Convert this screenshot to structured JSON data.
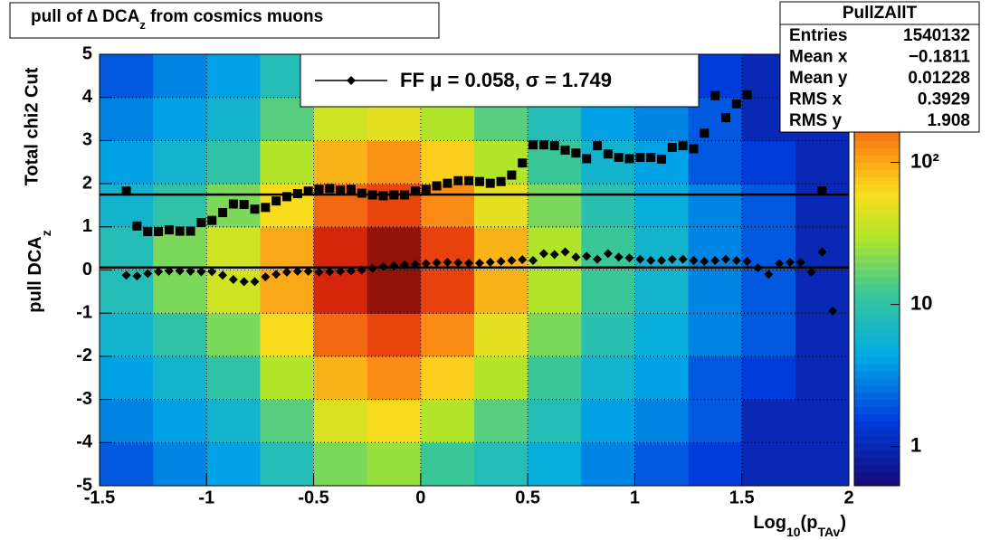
{
  "chart_data": {
    "type": "scatter",
    "title": [
      "pull of ∆ DCA",
      "z",
      " from cosmics muons"
    ],
    "ylabel_top": "Total chi2 Cut",
    "ylabel": [
      "pull DCA",
      "z"
    ],
    "xlabel": [
      "Log",
      "10",
      "(p",
      "TAv",
      ")"
    ],
    "xlim": [
      -1.5,
      2
    ],
    "ylim": [
      -5,
      5
    ],
    "xticks": [
      -1.5,
      -1,
      -0.5,
      0,
      0.5,
      1,
      1.5,
      2
    ],
    "yticks": [
      -5,
      -4,
      -3,
      -2,
      -1,
      0,
      1,
      2,
      3,
      4,
      5
    ],
    "grid": true,
    "legend": "FF μ =  0.058, σ =   1.749",
    "fit_lines": [
      0.058,
      1.749
    ],
    "x": [
      -1.375,
      -1.325,
      -1.275,
      -1.225,
      -1.175,
      -1.125,
      -1.075,
      -1.025,
      -0.975,
      -0.925,
      -0.875,
      -0.825,
      -0.775,
      -0.725,
      -0.675,
      -0.625,
      -0.575,
      -0.525,
      -0.475,
      -0.425,
      -0.375,
      -0.325,
      -0.275,
      -0.225,
      -0.175,
      -0.125,
      -0.075,
      -0.025,
      0.025,
      0.075,
      0.125,
      0.175,
      0.225,
      0.275,
      0.325,
      0.375,
      0.425,
      0.475,
      0.525,
      0.575,
      0.625,
      0.675,
      0.725,
      0.775,
      0.825,
      0.875,
      0.925,
      0.975,
      1.025,
      1.075,
      1.125,
      1.175,
      1.225,
      1.275,
      1.325,
      1.375,
      1.425,
      1.475,
      1.525,
      1.575,
      1.625,
      1.675,
      1.725,
      1.775,
      1.825,
      1.875,
      1.925
    ],
    "series": [
      {
        "marker": "diamond",
        "color": "#000000",
        "values": [
          -0.12,
          -0.14,
          -0.08,
          -0.04,
          -0.02,
          -0.02,
          -0.03,
          -0.04,
          -0.04,
          -0.12,
          -0.22,
          -0.27,
          -0.27,
          -0.16,
          -0.1,
          -0.05,
          -0.03,
          -0.03,
          -0.05,
          -0.04,
          -0.03,
          -0.02,
          0.0,
          0.04,
          0.08,
          0.1,
          0.12,
          0.13,
          0.15,
          0.17,
          0.18,
          0.17,
          0.16,
          0.16,
          0.18,
          0.2,
          0.22,
          0.24,
          0.22,
          0.38,
          0.36,
          0.42,
          0.3,
          0.32,
          0.25,
          0.38,
          0.3,
          0.28,
          0.25,
          0.22,
          0.22,
          0.25,
          0.25,
          0.22,
          0.2,
          0.22,
          0.25,
          0.22,
          0.2,
          0.05,
          -0.1,
          0.15,
          0.18,
          0.18,
          -0.05,
          0.42,
          -0.95
        ]
      },
      {
        "marker": "square",
        "color": "#000000",
        "values": [
          1.83,
          1.02,
          0.89,
          0.89,
          0.93,
          0.9,
          0.9,
          1.1,
          1.15,
          1.33,
          1.53,
          1.52,
          1.41,
          1.45,
          1.6,
          1.7,
          1.77,
          1.83,
          1.87,
          1.89,
          1.85,
          1.87,
          1.78,
          1.74,
          1.72,
          1.74,
          1.74,
          1.83,
          1.87,
          1.95,
          2.01,
          2.07,
          2.07,
          2.05,
          2.01,
          2.05,
          2.2,
          2.48,
          2.9,
          2.9,
          2.88,
          2.78,
          2.71,
          2.58,
          2.88,
          2.69,
          2.61,
          2.58,
          2.61,
          2.61,
          2.57,
          2.84,
          2.88,
          2.81,
          3.17,
          4.04,
          3.53,
          3.85,
          4.06,
          null,
          null,
          null,
          null,
          null,
          null,
          1.83,
          null
        ]
      }
    ],
    "heatmap": {
      "xbins": [
        -1.5,
        -1.25,
        -1,
        -0.75,
        -0.5,
        -0.25,
        0,
        0.25,
        0.5,
        0.75,
        1,
        1.25,
        1.5,
        1.75,
        2
      ],
      "ybins": [
        -5,
        -4,
        -3,
        -2,
        -1,
        0,
        1,
        2,
        3,
        4,
        5
      ],
      "z": [
        [
          2,
          3,
          4,
          8,
          20,
          25,
          12,
          8,
          5,
          3,
          2,
          1.5,
          1,
          1
        ],
        [
          3,
          4,
          6,
          15,
          45,
          60,
          30,
          15,
          8,
          4,
          3,
          2,
          1,
          1
        ],
        [
          4,
          6,
          10,
          30,
          90,
          130,
          70,
          30,
          12,
          6,
          4,
          2,
          1.5,
          1
        ],
        [
          6,
          10,
          20,
          60,
          180,
          250,
          130,
          50,
          20,
          9,
          5,
          3,
          2,
          1
        ],
        [
          8,
          20,
          40,
          100,
          350,
          500,
          260,
          90,
          30,
          12,
          6,
          3,
          2,
          1
        ],
        [
          8,
          20,
          40,
          100,
          350,
          500,
          260,
          90,
          30,
          12,
          6,
          3,
          2,
          1
        ],
        [
          6,
          10,
          20,
          60,
          180,
          250,
          130,
          50,
          20,
          9,
          5,
          3,
          2,
          1
        ],
        [
          4,
          6,
          10,
          30,
          90,
          120,
          70,
          30,
          12,
          6,
          4,
          2,
          1.5,
          1
        ],
        [
          3,
          4,
          6,
          15,
          40,
          50,
          30,
          15,
          8,
          4,
          3,
          2,
          1,
          1
        ],
        [
          2,
          3,
          4,
          8,
          15,
          20,
          12,
          8,
          5,
          3,
          2,
          1.5,
          1,
          1
        ]
      ],
      "zlim": [
        0.53,
        577
      ],
      "zscale": "log",
      "zticks": [
        1,
        10,
        {
          "value": 100,
          "label": "10²"
        }
      ]
    },
    "stats": {
      "title": "PullZAllT",
      "rows": [
        [
          "Entries",
          "1540132"
        ],
        [
          "Mean x",
          "−0.1811"
        ],
        [
          "Mean y",
          "0.01228"
        ],
        [
          "RMS x",
          "0.3929"
        ],
        [
          "RMS y",
          "1.908"
        ]
      ]
    }
  }
}
